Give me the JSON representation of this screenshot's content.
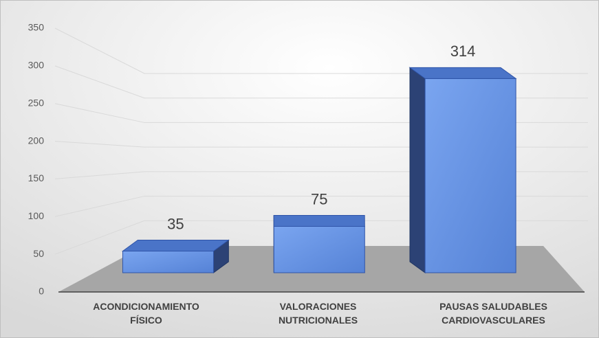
{
  "chart_data": {
    "type": "bar",
    "categories": [
      "ACONDICIONAMIENTO FÍSICO",
      "VALORACIONES NUTRICIONALES",
      "PAUSAS SALUDABLES CARDIOVASCULARES"
    ],
    "values": [
      35,
      75,
      314
    ],
    "color": "#6a96e6",
    "ylim": [
      0,
      350
    ],
    "yticks": [
      0,
      50,
      100,
      150,
      200,
      250,
      300,
      350
    ],
    "grid": true
  }
}
